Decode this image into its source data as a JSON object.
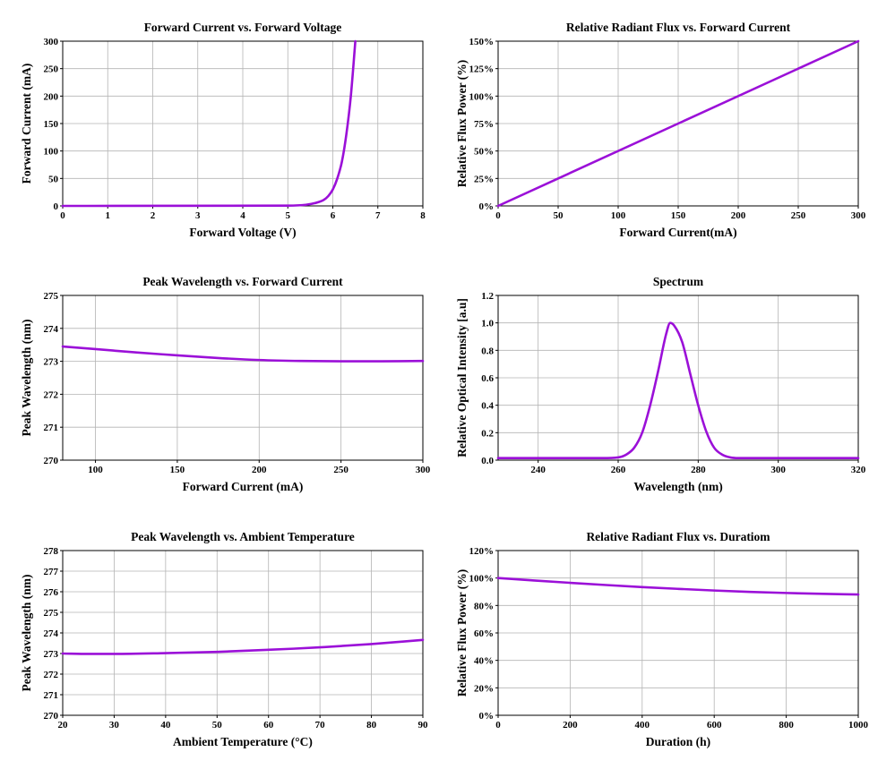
{
  "colors": {
    "curve": "#9b10d8",
    "grid": "#b4b4b4",
    "axis": "#000000"
  },
  "chart_data": [
    {
      "type": "line",
      "title": "Forward Current vs. Forward Voltage",
      "xlabel": "Forward Voltage (V)",
      "ylabel": "Forward Current (mA)",
      "xlim": [
        0,
        8
      ],
      "ylim": [
        0,
        300
      ],
      "xticks": [
        0,
        1,
        2,
        3,
        4,
        5,
        6,
        7,
        8
      ],
      "yticks": [
        0,
        50,
        100,
        150,
        200,
        250,
        300
      ],
      "xtick_labels": [
        "0",
        "1",
        "2",
        "3",
        "4",
        "5",
        "6",
        "7",
        "8"
      ],
      "ytick_labels": [
        "0",
        "50",
        "100",
        "150",
        "200",
        "250",
        "300"
      ],
      "grid": true,
      "series": [
        {
          "x": [
            0,
            5.0,
            5.4,
            5.6,
            5.8,
            5.9,
            6.0,
            6.1,
            6.2,
            6.3,
            6.4,
            6.5
          ],
          "y": [
            0,
            0.5,
            2,
            5,
            11,
            18,
            30,
            50,
            80,
            130,
            200,
            300
          ]
        }
      ]
    },
    {
      "type": "line",
      "title": "Relative Radiant Flux vs. Forward Current",
      "xlabel": "Forward Current(mA)",
      "ylabel": "Relative Flux Power (%)",
      "xlim": [
        0,
        300
      ],
      "ylim": [
        0,
        150
      ],
      "xticks": [
        0,
        50,
        100,
        150,
        200,
        250,
        300
      ],
      "yticks": [
        0,
        25,
        50,
        75,
        100,
        125,
        150
      ],
      "xtick_labels": [
        "0",
        "50",
        "100",
        "150",
        "200",
        "250",
        "300"
      ],
      "ytick_labels": [
        "0%",
        "25%",
        "50%",
        "75%",
        "100%",
        "125%",
        "150%"
      ],
      "grid": true,
      "series": [
        {
          "x": [
            0,
            300
          ],
          "y": [
            0,
            150
          ]
        }
      ]
    },
    {
      "type": "line",
      "title": "Peak Wavelength vs. Forward Current",
      "xlabel": "Forward Current (mA)",
      "ylabel": "Peak Wavelength (nm)",
      "xlim": [
        80,
        300
      ],
      "ylim": [
        270,
        275
      ],
      "xticks": [
        100,
        150,
        200,
        250,
        300
      ],
      "yticks": [
        270,
        271,
        272,
        273,
        274,
        275
      ],
      "xtick_labels": [
        "100",
        "150",
        "200",
        "250",
        "300"
      ],
      "ytick_labels": [
        "270",
        "271",
        "272",
        "273",
        "274",
        "275"
      ],
      "grid": true,
      "series": [
        {
          "x": [
            80,
            100,
            125,
            150,
            175,
            200,
            225,
            250,
            275,
            300
          ],
          "y": [
            273.45,
            273.37,
            273.27,
            273.18,
            273.1,
            273.04,
            273.01,
            273.0,
            273.0,
            273.01
          ]
        }
      ]
    },
    {
      "type": "line",
      "title": "Spectrum",
      "xlabel": "Wavelength (nm)",
      "ylabel": "Relative Optical Intensity [a.u]",
      "xlim": [
        230,
        320
      ],
      "ylim": [
        0,
        1.2
      ],
      "xticks": [
        240,
        260,
        280,
        300,
        320
      ],
      "yticks": [
        0,
        0.2,
        0.4,
        0.6,
        0.8,
        1.0,
        1.2
      ],
      "xtick_labels": [
        "240",
        "260",
        "280",
        "300",
        "320"
      ],
      "ytick_labels": [
        "0.0",
        "0.2",
        "0.4",
        "0.6",
        "0.8",
        "1.0",
        "1.2"
      ],
      "grid": true,
      "series": [
        {
          "x": [
            230,
            256,
            260,
            262,
            264,
            266,
            268,
            270,
            272,
            273,
            274,
            276,
            278,
            280,
            282,
            284,
            286,
            288,
            290,
            320
          ],
          "y": [
            0.015,
            0.015,
            0.02,
            0.04,
            0.09,
            0.2,
            0.4,
            0.65,
            0.92,
            1.0,
            0.98,
            0.86,
            0.63,
            0.4,
            0.21,
            0.09,
            0.04,
            0.02,
            0.015,
            0.015
          ]
        }
      ]
    },
    {
      "type": "line",
      "title": "Peak Wavelength vs. Ambient Temperature",
      "xlabel": "Ambient Temperature (°C)",
      "ylabel": "Peak Wavelength (nm)",
      "xlim": [
        20,
        90
      ],
      "ylim": [
        270,
        278
      ],
      "xticks": [
        20,
        30,
        40,
        50,
        60,
        70,
        80,
        90
      ],
      "yticks": [
        270,
        271,
        272,
        273,
        274,
        275,
        276,
        277,
        278
      ],
      "xtick_labels": [
        "20",
        "30",
        "40",
        "50",
        "60",
        "70",
        "80",
        "90"
      ],
      "ytick_labels": [
        "270",
        "271",
        "272",
        "273",
        "274",
        "275",
        "276",
        "277",
        "278"
      ],
      "grid": true,
      "series": [
        {
          "x": [
            20,
            25,
            30,
            40,
            50,
            60,
            70,
            80,
            90
          ],
          "y": [
            273.0,
            272.98,
            272.98,
            273.02,
            273.08,
            273.18,
            273.3,
            273.46,
            273.66
          ]
        }
      ]
    },
    {
      "type": "line",
      "title": "Relative Radiant Flux vs. Duratiom",
      "xlabel": "Duration (h)",
      "ylabel": "Relative Flux Power (%)",
      "xlim": [
        0,
        1000
      ],
      "ylim": [
        0,
        120
      ],
      "xticks": [
        0,
        200,
        400,
        600,
        800,
        1000
      ],
      "yticks": [
        0,
        20,
        40,
        60,
        80,
        100,
        120
      ],
      "xtick_labels": [
        "0",
        "200",
        "400",
        "600",
        "800",
        "1000"
      ],
      "ytick_labels": [
        "0%",
        "20%",
        "40%",
        "60%",
        "80%",
        "100%",
        "120%"
      ],
      "grid": true,
      "series": [
        {
          "x": [
            0,
            100,
            200,
            300,
            400,
            500,
            600,
            700,
            800,
            900,
            1000
          ],
          "y": [
            100,
            98.2,
            96.5,
            94.9,
            93.4,
            92.1,
            90.9,
            89.9,
            89.1,
            88.5,
            88.0
          ]
        }
      ]
    }
  ]
}
